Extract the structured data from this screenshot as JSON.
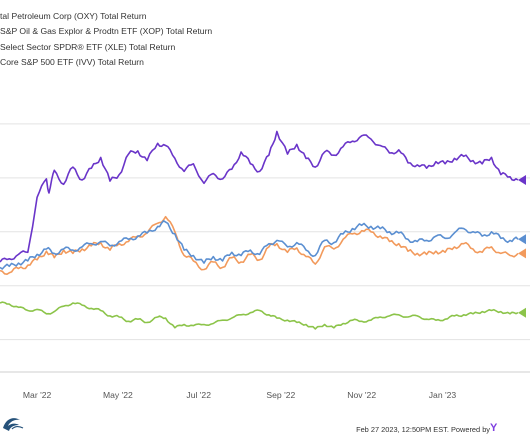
{
  "chart_data": {
    "type": "line",
    "title": "",
    "xlabel": "",
    "ylabel": "",
    "grid": true,
    "legend_position": "top-left",
    "x_ticks": [
      "Mar '22",
      "May '22",
      "Jul '22",
      "Sep '22",
      "Nov '22",
      "Jan '23"
    ],
    "x_range": [
      "2022-02-01",
      "2023-02-27"
    ],
    "series": [
      {
        "name": "tal Petroleum Corp (OXY) Total Return",
        "color": "#6a35c9",
        "points": [
          [
            "2022-02-01",
            2.2
          ],
          [
            "2022-02-08",
            2.5
          ],
          [
            "2022-02-15",
            2.9
          ],
          [
            "2022-02-22",
            3.1
          ],
          [
            "2022-03-01",
            8.2
          ],
          [
            "2022-03-08",
            9.9
          ],
          [
            "2022-03-10",
            8.6
          ],
          [
            "2022-03-14",
            10.7
          ],
          [
            "2022-03-21",
            9.4
          ],
          [
            "2022-03-28",
            11.0
          ],
          [
            "2022-04-04",
            9.8
          ],
          [
            "2022-04-11",
            10.9
          ],
          [
            "2022-04-18",
            11.9
          ],
          [
            "2022-04-25",
            9.7
          ],
          [
            "2022-05-02",
            10.3
          ],
          [
            "2022-05-09",
            12.2
          ],
          [
            "2022-05-16",
            12.5
          ],
          [
            "2022-05-23",
            11.6
          ],
          [
            "2022-05-31",
            13.2
          ],
          [
            "2022-06-06",
            13.0
          ],
          [
            "2022-06-13",
            11.8
          ],
          [
            "2022-06-20",
            10.6
          ],
          [
            "2022-06-27",
            11.3
          ],
          [
            "2022-07-05",
            9.5
          ],
          [
            "2022-07-12",
            10.4
          ],
          [
            "2022-07-19",
            9.9
          ],
          [
            "2022-07-26",
            10.8
          ],
          [
            "2022-08-02",
            12.4
          ],
          [
            "2022-08-09",
            11.3
          ],
          [
            "2022-08-16",
            10.6
          ],
          [
            "2022-08-23",
            12.1
          ],
          [
            "2022-08-29",
            14.3
          ],
          [
            "2022-09-06",
            12.2
          ],
          [
            "2022-09-13",
            13.1
          ],
          [
            "2022-09-20",
            11.8
          ],
          [
            "2022-09-27",
            11.0
          ],
          [
            "2022-10-04",
            12.4
          ],
          [
            "2022-10-11",
            12.1
          ],
          [
            "2022-10-18",
            12.9
          ],
          [
            "2022-10-25",
            13.4
          ],
          [
            "2022-11-01",
            13.9
          ],
          [
            "2022-11-08",
            13.6
          ],
          [
            "2022-11-15",
            13.0
          ],
          [
            "2022-11-22",
            12.3
          ],
          [
            "2022-11-29",
            12.6
          ],
          [
            "2022-12-06",
            11.4
          ],
          [
            "2022-12-13",
            11.2
          ],
          [
            "2022-12-20",
            10.9
          ],
          [
            "2022-12-27",
            11.5
          ],
          [
            "2023-01-03",
            11.3
          ],
          [
            "2023-01-10",
            11.8
          ],
          [
            "2023-01-17",
            12.0
          ],
          [
            "2023-01-24",
            11.6
          ],
          [
            "2023-01-31",
            11.3
          ],
          [
            "2023-02-07",
            11.9
          ],
          [
            "2023-02-14",
            10.3
          ],
          [
            "2023-02-21",
            10.1
          ],
          [
            "2023-02-27",
            9.8
          ]
        ]
      },
      {
        "name": "S&P Oil & Gas Explor & Prodtn ETF (XOP) Total Return",
        "color": "#f29a5c",
        "points": [
          [
            "2022-02-01",
            1.4
          ],
          [
            "2022-02-08",
            1.2
          ],
          [
            "2022-02-15",
            1.6
          ],
          [
            "2022-02-22",
            1.9
          ],
          [
            "2022-03-01",
            2.4
          ],
          [
            "2022-03-08",
            3.2
          ],
          [
            "2022-03-14",
            2.6
          ],
          [
            "2022-03-21",
            3.3
          ],
          [
            "2022-03-28",
            3.0
          ],
          [
            "2022-04-04",
            3.4
          ],
          [
            "2022-04-11",
            3.7
          ],
          [
            "2022-04-18",
            4.0
          ],
          [
            "2022-04-25",
            3.3
          ],
          [
            "2022-05-02",
            3.9
          ],
          [
            "2022-05-09",
            4.1
          ],
          [
            "2022-05-16",
            4.6
          ],
          [
            "2022-05-23",
            4.9
          ],
          [
            "2022-05-31",
            5.8
          ],
          [
            "2022-06-06",
            6.4
          ],
          [
            "2022-06-13",
            5.0
          ],
          [
            "2022-06-20",
            2.8
          ],
          [
            "2022-06-27",
            2.3
          ],
          [
            "2022-07-05",
            1.5
          ],
          [
            "2022-07-12",
            2.2
          ],
          [
            "2022-07-19",
            1.7
          ],
          [
            "2022-07-26",
            2.6
          ],
          [
            "2022-08-02",
            2.2
          ],
          [
            "2022-08-09",
            2.9
          ],
          [
            "2022-08-16",
            2.4
          ],
          [
            "2022-08-23",
            3.6
          ],
          [
            "2022-08-29",
            3.9
          ],
          [
            "2022-09-06",
            3.1
          ],
          [
            "2022-09-13",
            3.5
          ],
          [
            "2022-09-20",
            2.7
          ],
          [
            "2022-09-27",
            2.0
          ],
          [
            "2022-10-04",
            3.6
          ],
          [
            "2022-10-11",
            3.4
          ],
          [
            "2022-10-18",
            4.3
          ],
          [
            "2022-10-25",
            4.8
          ],
          [
            "2022-11-01",
            5.1
          ],
          [
            "2022-11-08",
            5.0
          ],
          [
            "2022-11-15",
            4.6
          ],
          [
            "2022-11-22",
            4.1
          ],
          [
            "2022-11-29",
            3.9
          ],
          [
            "2022-12-06",
            3.2
          ],
          [
            "2022-12-13",
            3.0
          ],
          [
            "2022-12-20",
            2.9
          ],
          [
            "2022-12-27",
            3.2
          ],
          [
            "2023-01-03",
            3.1
          ],
          [
            "2023-01-10",
            3.6
          ],
          [
            "2023-01-17",
            3.9
          ],
          [
            "2023-01-24",
            3.4
          ],
          [
            "2023-01-31",
            3.1
          ],
          [
            "2023-02-07",
            3.6
          ],
          [
            "2023-02-14",
            3.0
          ],
          [
            "2023-02-21",
            2.8
          ],
          [
            "2023-02-27",
            3.0
          ]
        ]
      },
      {
        "name": "Select Sector SPDR® ETF (XLE) Total Return",
        "color": "#5b8fd1",
        "points": [
          [
            "2022-02-01",
            1.7
          ],
          [
            "2022-02-08",
            1.8
          ],
          [
            "2022-02-15",
            2.1
          ],
          [
            "2022-02-22",
            2.3
          ],
          [
            "2022-03-01",
            2.9
          ],
          [
            "2022-03-08",
            3.4
          ],
          [
            "2022-03-14",
            3.0
          ],
          [
            "2022-03-21",
            3.4
          ],
          [
            "2022-03-28",
            3.3
          ],
          [
            "2022-04-04",
            3.6
          ],
          [
            "2022-04-11",
            3.9
          ],
          [
            "2022-04-18",
            4.1
          ],
          [
            "2022-04-25",
            3.7
          ],
          [
            "2022-05-02",
            4.1
          ],
          [
            "2022-05-09",
            4.3
          ],
          [
            "2022-05-16",
            4.6
          ],
          [
            "2022-05-23",
            4.9
          ],
          [
            "2022-05-31",
            5.5
          ],
          [
            "2022-06-06",
            5.9
          ],
          [
            "2022-06-13",
            4.8
          ],
          [
            "2022-06-20",
            3.3
          ],
          [
            "2022-06-27",
            2.8
          ],
          [
            "2022-07-05",
            2.1
          ],
          [
            "2022-07-12",
            2.7
          ],
          [
            "2022-07-19",
            2.3
          ],
          [
            "2022-07-26",
            3.1
          ],
          [
            "2022-08-02",
            2.8
          ],
          [
            "2022-08-09",
            3.3
          ],
          [
            "2022-08-16",
            2.9
          ],
          [
            "2022-08-23",
            3.9
          ],
          [
            "2022-08-29",
            4.2
          ],
          [
            "2022-09-06",
            3.6
          ],
          [
            "2022-09-13",
            4.0
          ],
          [
            "2022-09-20",
            3.3
          ],
          [
            "2022-09-27",
            2.8
          ],
          [
            "2022-10-04",
            4.2
          ],
          [
            "2022-10-11",
            4.0
          ],
          [
            "2022-10-18",
            4.8
          ],
          [
            "2022-10-25",
            5.3
          ],
          [
            "2022-11-01",
            5.6
          ],
          [
            "2022-11-08",
            5.5
          ],
          [
            "2022-11-15",
            5.3
          ],
          [
            "2022-11-22",
            5.0
          ],
          [
            "2022-11-29",
            4.9
          ],
          [
            "2022-12-06",
            4.3
          ],
          [
            "2022-12-13",
            4.1
          ],
          [
            "2022-12-20",
            4.2
          ],
          [
            "2022-12-27",
            4.6
          ],
          [
            "2023-01-03",
            4.4
          ],
          [
            "2023-01-10",
            4.9
          ],
          [
            "2023-01-17",
            5.3
          ],
          [
            "2023-01-24",
            5.0
          ],
          [
            "2023-01-31",
            4.6
          ],
          [
            "2023-02-07",
            5.0
          ],
          [
            "2023-02-14",
            4.4
          ],
          [
            "2023-02-21",
            4.2
          ],
          [
            "2023-02-27",
            4.3
          ]
        ]
      },
      {
        "name": "Core S&P 500 ETF (IVV) Total Return",
        "color": "#8cc44a",
        "points": [
          [
            "2022-02-01",
            -1.6
          ],
          [
            "2022-02-08",
            -1.7
          ],
          [
            "2022-02-15",
            -2.0
          ],
          [
            "2022-02-22",
            -2.3
          ],
          [
            "2022-03-01",
            -2.2
          ],
          [
            "2022-03-08",
            -2.6
          ],
          [
            "2022-03-14",
            -2.4
          ],
          [
            "2022-03-21",
            -1.9
          ],
          [
            "2022-03-28",
            -1.6
          ],
          [
            "2022-04-04",
            -1.8
          ],
          [
            "2022-04-11",
            -2.1
          ],
          [
            "2022-04-18",
            -2.3
          ],
          [
            "2022-04-25",
            -2.8
          ],
          [
            "2022-05-02",
            -2.9
          ],
          [
            "2022-05-09",
            -3.3
          ],
          [
            "2022-05-16",
            -3.1
          ],
          [
            "2022-05-23",
            -3.4
          ],
          [
            "2022-05-31",
            -2.9
          ],
          [
            "2022-06-06",
            -3.0
          ],
          [
            "2022-06-13",
            -3.9
          ],
          [
            "2022-06-20",
            -3.6
          ],
          [
            "2022-06-27",
            -3.7
          ],
          [
            "2022-07-05",
            -3.6
          ],
          [
            "2022-07-12",
            -3.5
          ],
          [
            "2022-07-19",
            -3.2
          ],
          [
            "2022-07-26",
            -3.0
          ],
          [
            "2022-08-02",
            -2.7
          ],
          [
            "2022-08-09",
            -2.5
          ],
          [
            "2022-08-16",
            -2.3
          ],
          [
            "2022-08-23",
            -2.7
          ],
          [
            "2022-08-29",
            -3.0
          ],
          [
            "2022-09-06",
            -3.2
          ],
          [
            "2022-09-13",
            -3.4
          ],
          [
            "2022-09-20",
            -3.6
          ],
          [
            "2022-09-27",
            -4.0
          ],
          [
            "2022-10-04",
            -3.6
          ],
          [
            "2022-10-11",
            -3.9
          ],
          [
            "2022-10-18",
            -3.5
          ],
          [
            "2022-10-25",
            -3.2
          ],
          [
            "2022-11-01",
            -3.3
          ],
          [
            "2022-11-08",
            -3.2
          ],
          [
            "2022-11-15",
            -2.9
          ],
          [
            "2022-11-22",
            -2.8
          ],
          [
            "2022-11-29",
            -2.7
          ],
          [
            "2022-12-06",
            -2.9
          ],
          [
            "2022-12-13",
            -2.8
          ],
          [
            "2022-12-20",
            -3.1
          ],
          [
            "2022-12-27",
            -3.2
          ],
          [
            "2023-01-03",
            -3.1
          ],
          [
            "2023-01-10",
            -2.8
          ],
          [
            "2023-01-17",
            -2.7
          ],
          [
            "2023-01-24",
            -2.6
          ],
          [
            "2023-01-31",
            -2.4
          ],
          [
            "2023-02-07",
            -2.3
          ],
          [
            "2023-02-14",
            -2.4
          ],
          [
            "2023-02-21",
            -2.6
          ],
          [
            "2023-02-27",
            -2.5
          ]
        ]
      }
    ]
  },
  "footer": {
    "timestamp_text": "Feb 27 2023, 12:50PM EST. Powered by",
    "brand_mark": "Y"
  }
}
